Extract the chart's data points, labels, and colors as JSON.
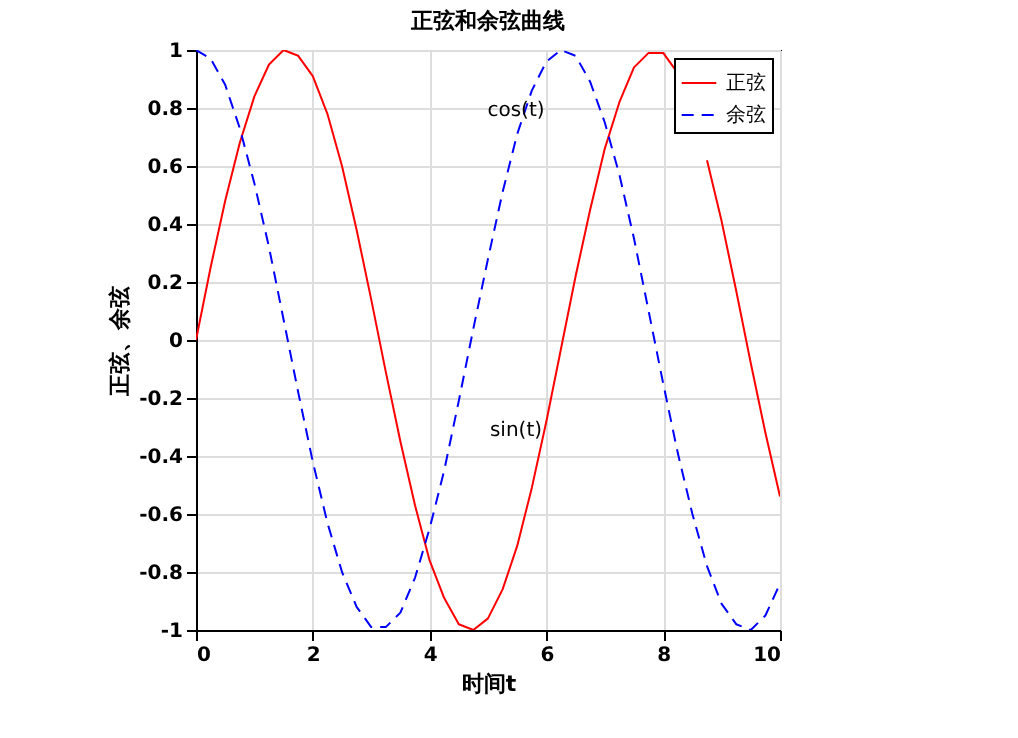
{
  "chart_data": {
    "type": "line",
    "title": "正弦和余弦曲线",
    "xlabel": "时间t",
    "ylabel": "正弦、余弦",
    "x": [
      0,
      0.25,
      0.5,
      0.75,
      1,
      1.25,
      1.5,
      1.75,
      2,
      2.25,
      2.5,
      2.75,
      3,
      3.25,
      3.5,
      3.75,
      4,
      4.25,
      4.5,
      4.75,
      5,
      5.25,
      5.5,
      5.75,
      6,
      6.25,
      6.5,
      6.75,
      7,
      7.25,
      7.5,
      7.75,
      8,
      8.25,
      8.5,
      8.75,
      9,
      9.25,
      9.5,
      9.75,
      10
    ],
    "series": [
      {
        "name": "正弦",
        "color": "#ff0000",
        "line_style": "solid",
        "values": [
          0,
          0.25,
          0.48,
          0.68,
          0.84,
          0.95,
          1.0,
          0.98,
          0.91,
          0.78,
          0.6,
          0.38,
          0.14,
          -0.11,
          -0.35,
          -0.57,
          -0.76,
          -0.89,
          -0.98,
          -1.0,
          -0.96,
          -0.86,
          -0.71,
          -0.51,
          -0.28,
          -0.03,
          0.22,
          0.45,
          0.66,
          0.82,
          0.94,
          0.99,
          0.99,
          0.92,
          null,
          0.62,
          0.41,
          0.17,
          -0.08,
          -0.32,
          -0.54
        ]
      },
      {
        "name": "余弦",
        "color": "#0000ff",
        "line_style": "dashed",
        "values": [
          1,
          0.97,
          0.88,
          0.73,
          0.54,
          0.32,
          0.07,
          -0.18,
          -0.42,
          -0.63,
          -0.8,
          -0.92,
          -0.99,
          -0.99,
          -0.94,
          -0.82,
          -0.65,
          -0.45,
          -0.21,
          0.04,
          0.28,
          0.51,
          0.71,
          0.86,
          0.96,
          1.0,
          0.98,
          0.89,
          0.75,
          0.57,
          0.35,
          0.1,
          -0.15,
          -0.39,
          -0.6,
          -0.78,
          -0.91,
          -0.98,
          -1.0,
          -0.95,
          -0.84
        ]
      }
    ],
    "annotations": [
      "cos(t)",
      "sin(t)"
    ],
    "xlim": [
      0,
      10
    ],
    "xticks": [
      0,
      2,
      4,
      6,
      8,
      10
    ],
    "ylim": [
      -1,
      1
    ],
    "yticks": [
      -1,
      -0.8,
      -0.6,
      -0.4,
      -0.2,
      0,
      0.2,
      0.4,
      0.6,
      0.8,
      1
    ],
    "grid": true,
    "legend": "top right"
  }
}
